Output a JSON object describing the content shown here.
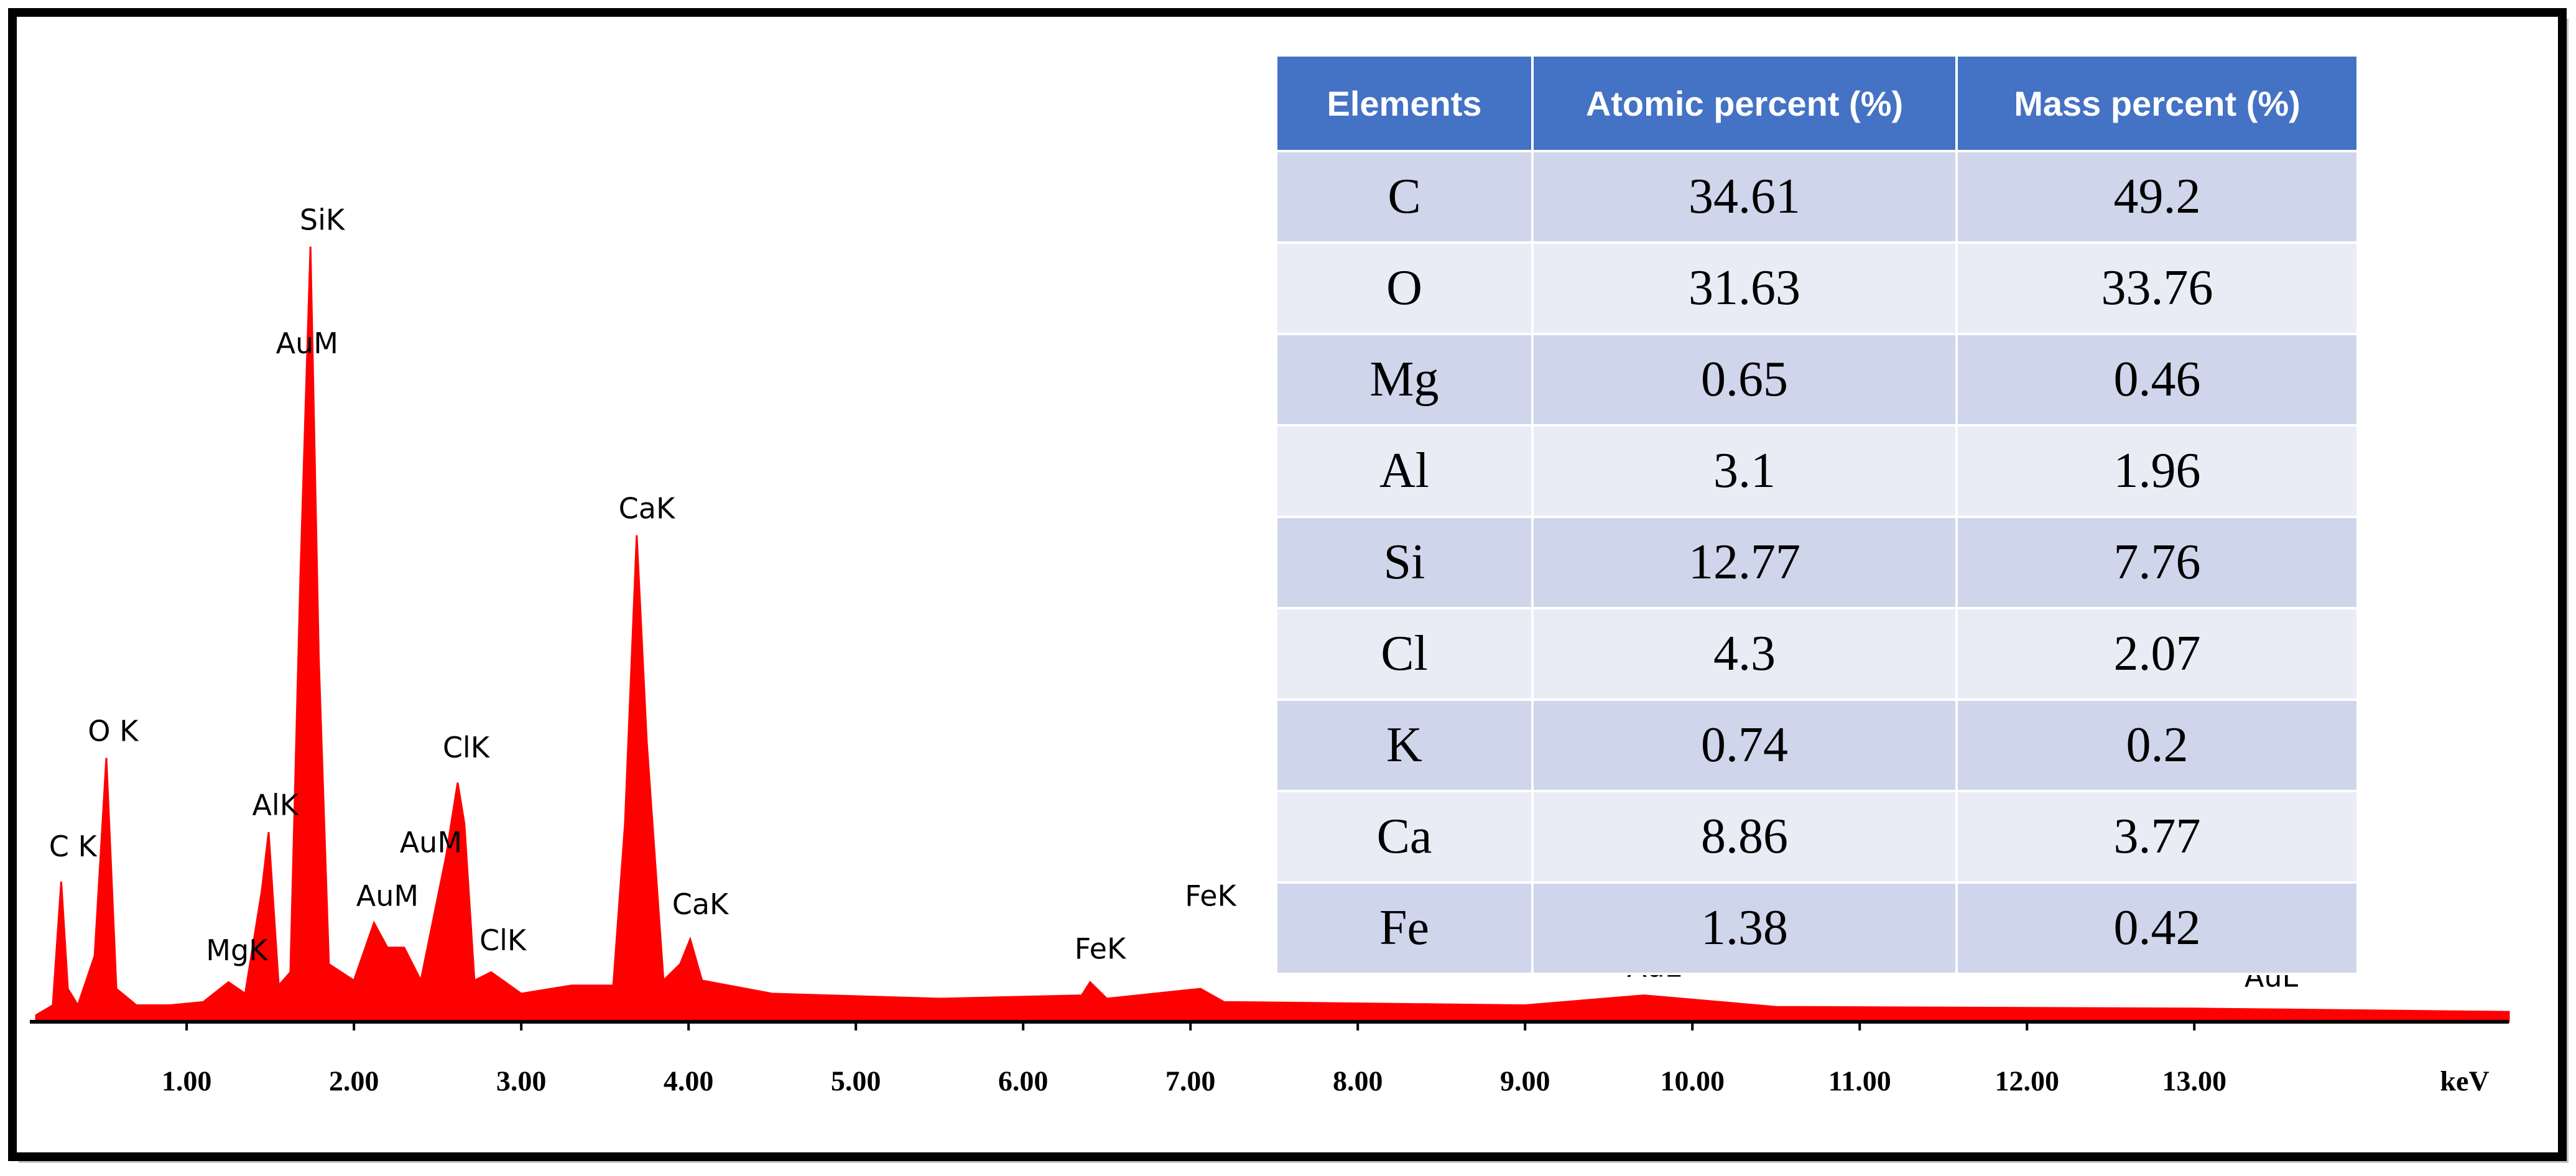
{
  "chart_data": {
    "type": "spectrum",
    "x_label": "keV",
    "x": [
      0.1,
      0.2,
      0.25,
      0.29,
      0.35,
      0.45,
      0.52,
      0.58,
      0.7,
      0.9,
      1.1,
      1.25,
      1.35,
      1.45,
      1.49,
      1.55,
      1.62,
      1.68,
      1.74,
      1.79,
      1.85,
      2.0,
      2.12,
      2.2,
      2.3,
      2.4,
      2.55,
      2.62,
      2.66,
      2.72,
      2.82,
      3.0,
      3.3,
      3.55,
      3.62,
      3.69,
      3.75,
      3.85,
      3.95,
      4.01,
      4.08,
      4.5,
      5.5,
      6.35,
      6.4,
      6.5,
      7.06,
      7.2,
      9.0,
      9.71,
      10.5,
      13.0,
      14.88
    ],
    "values": [
      0.8,
      2,
      17,
      4,
      2,
      8,
      32,
      4,
      2,
      2,
      2.4,
      4.8,
      3.4,
      16,
      23,
      4.4,
      6,
      54,
      94,
      44,
      7,
      5,
      12,
      9,
      9,
      5,
      20,
      29,
      24,
      5,
      6,
      3.4,
      4.4,
      4.4,
      24,
      59,
      34,
      5,
      7,
      10,
      5,
      3.4,
      2.8,
      3.2,
      4.8,
      2.8,
      4,
      2.4,
      2,
      3.2,
      1.8,
      1.6,
      1.2
    ],
    "color": "#ff0000",
    "xlim": [
      0.1,
      14.88
    ],
    "ylim": [
      0,
      100
    ],
    "xticks": [
      {
        "value": 1,
        "label": "1.00"
      },
      {
        "value": 2,
        "label": "2.00"
      },
      {
        "value": 3,
        "label": "3.00"
      },
      {
        "value": 4,
        "label": "4.00"
      },
      {
        "value": 5,
        "label": "5.00"
      },
      {
        "value": 6,
        "label": "6.00"
      },
      {
        "value": 7,
        "label": "7.00"
      },
      {
        "value": 8,
        "label": "8.00"
      },
      {
        "value": 9,
        "label": "9.00"
      },
      {
        "value": 10,
        "label": "10.00"
      },
      {
        "value": 11,
        "label": "11.00"
      },
      {
        "value": 12,
        "label": "12.00"
      },
      {
        "value": 13,
        "label": "13.00"
      }
    ],
    "annotations": [
      {
        "text": "C K",
        "x": 0.32,
        "y": 21
      },
      {
        "text": "O K",
        "x": 0.56,
        "y": 35
      },
      {
        "text": "MgK",
        "x": 1.3,
        "y": 8.4
      },
      {
        "text": "AlK",
        "x": 1.53,
        "y": 26
      },
      {
        "text": "SiK",
        "x": 1.81,
        "y": 97
      },
      {
        "text": "AuM",
        "x": 1.72,
        "y": 82
      },
      {
        "text": "AuM",
        "x": 2.2,
        "y": 15
      },
      {
        "text": "ClK",
        "x": 2.67,
        "y": 33
      },
      {
        "text": "AuM",
        "x": 2.46,
        "y": 21.5
      },
      {
        "text": "ClK",
        "x": 2.89,
        "y": 9.6
      },
      {
        "text": "CaK",
        "x": 3.75,
        "y": 62
      },
      {
        "text": "CaK",
        "x": 4.07,
        "y": 14
      },
      {
        "text": "FeK",
        "x": 6.46,
        "y": 8.6
      },
      {
        "text": "FeK",
        "x": 7.12,
        "y": 15
      },
      {
        "text": "AuL",
        "x": 9.77,
        "y": 6.4
      },
      {
        "text": "AuL",
        "x": 13.46,
        "y": 5.2
      }
    ]
  },
  "table": {
    "header": [
      "Elements",
      "Atomic percent (%)",
      "Mass percent (%)"
    ],
    "rows": [
      [
        "C",
        34.61,
        49.2
      ],
      [
        "O",
        31.63,
        33.76
      ],
      [
        "Mg",
        0.65,
        0.46
      ],
      [
        "Al",
        3.1,
        1.96
      ],
      [
        "Si",
        12.77,
        7.76
      ],
      [
        "Cl",
        4.3,
        2.07
      ],
      [
        "K",
        0.74,
        0.2
      ],
      [
        "Ca",
        8.86,
        3.77
      ],
      [
        "Fe",
        1.38,
        0.42
      ]
    ]
  }
}
